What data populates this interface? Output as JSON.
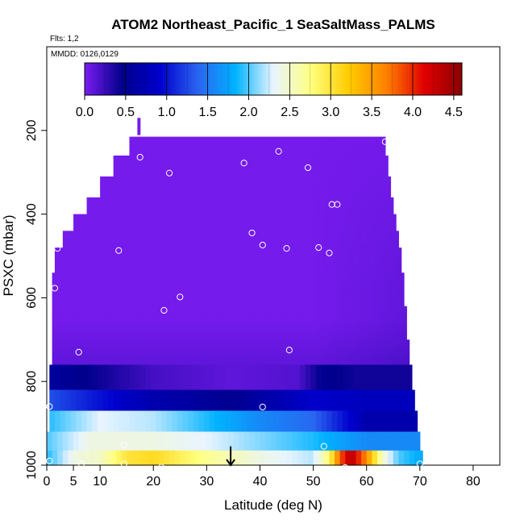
{
  "chart_data": {
    "type": "heatmap",
    "title": "ATOM2 Northeast_Pacific_1 SeaSaltMass_PALMS",
    "subtitle": "Flts: 1,2",
    "annotation": "MMDD: 0126,0129",
    "xlabel": "Latitude (deg N)",
    "ylabel": "PSXC (mbar)",
    "xlim": [
      0,
      85
    ],
    "ylim": [
      1000,
      0
    ],
    "x_ticks": [
      0,
      5,
      10,
      20,
      30,
      40,
      50,
      60,
      70,
      80
    ],
    "x_tick_labels": [
      "0",
      "5",
      "10",
      "20",
      "30",
      "40",
      "50",
      "60",
      "70",
      "80"
    ],
    "y_ticks": [
      200,
      400,
      600,
      800,
      1000
    ],
    "y_tick_labels": [
      "200",
      "400",
      "600",
      "800",
      "1000"
    ],
    "colorbar": {
      "range": [
        0,
        4.6
      ],
      "ticks": [
        0.0,
        0.5,
        1.0,
        1.5,
        2.0,
        2.5,
        3.0,
        3.5,
        4.0,
        4.5
      ],
      "tick_labels": [
        "0.0",
        "0.5",
        "1.0",
        "1.5",
        "2.0",
        "2.5",
        "3.0",
        "3.5",
        "4.0",
        "4.5"
      ],
      "colors": [
        "#7a1cf0",
        "#00008b",
        "#0000cd",
        "#2a64f0",
        "#00b2ff",
        "#e8f4ff",
        "#ffff80",
        "#ffcc00",
        "#ff8000",
        "#e00000",
        "#8b0000"
      ]
    },
    "coverage": [
      {
        "pmin": 170,
        "pmax": 210,
        "lmin": 17.0,
        "lmax": 17.5
      },
      {
        "pmin": 215,
        "pmax": 260,
        "lmin": 15.5,
        "lmax": 63.5
      },
      {
        "pmin": 260,
        "pmax": 310,
        "lmin": 12.5,
        "lmax": 64.0
      },
      {
        "pmin": 310,
        "pmax": 360,
        "lmin": 10.0,
        "lmax": 64.5
      },
      {
        "pmin": 360,
        "pmax": 400,
        "lmin": 7.5,
        "lmax": 65.0
      },
      {
        "pmin": 400,
        "pmax": 440,
        "lmin": 5.0,
        "lmax": 65.5
      },
      {
        "pmin": 440,
        "pmax": 480,
        "lmin": 3.0,
        "lmax": 66.0
      },
      {
        "pmin": 480,
        "pmax": 540,
        "lmin": 1.5,
        "lmax": 66.5
      },
      {
        "pmin": 540,
        "pmax": 620,
        "lmin": 1.0,
        "lmax": 67.0
      },
      {
        "pmin": 620,
        "pmax": 700,
        "lmin": 1.0,
        "lmax": 67.5
      },
      {
        "pmin": 700,
        "pmax": 760,
        "lmin": 1.0,
        "lmax": 68.0
      },
      {
        "pmin": 760,
        "pmax": 820,
        "lmin": 0.5,
        "lmax": 68.5
      },
      {
        "pmin": 820,
        "pmax": 870,
        "lmin": 0.5,
        "lmax": 69.0
      },
      {
        "pmin": 870,
        "pmax": 920,
        "lmin": 0.5,
        "lmax": 69.5
      },
      {
        "pmin": 920,
        "pmax": 965,
        "lmin": 0.0,
        "lmax": 70.0
      },
      {
        "pmin": 965,
        "pmax": 1000,
        "lmin": 0.0,
        "lmax": 70.5
      }
    ],
    "value_bands": [
      {
        "pmin": 760,
        "pmax": 820,
        "stops": [
          [
            0,
            0.6
          ],
          [
            8,
            0.45
          ],
          [
            20,
            0.2
          ],
          [
            35,
            0.1
          ],
          [
            47,
            0.15
          ],
          [
            52,
            0.5
          ],
          [
            58,
            0.4
          ],
          [
            70,
            0.4
          ]
        ]
      },
      {
        "pmin": 820,
        "pmax": 870,
        "stops": [
          [
            0,
            1.3
          ],
          [
            10,
            1.0
          ],
          [
            20,
            0.7
          ],
          [
            35,
            0.5
          ],
          [
            50,
            0.9
          ],
          [
            60,
            0.8
          ],
          [
            70,
            0.8
          ]
        ]
      },
      {
        "pmin": 870,
        "pmax": 920,
        "stops": [
          [
            0,
            1.9
          ],
          [
            10,
            2.3
          ],
          [
            20,
            2.2
          ],
          [
            30,
            1.9
          ],
          [
            40,
            1.6
          ],
          [
            50,
            1.4
          ],
          [
            60,
            0.7
          ],
          [
            70,
            0.7
          ]
        ]
      },
      {
        "pmin": 920,
        "pmax": 965,
        "stops": [
          [
            0,
            2.0
          ],
          [
            8,
            2.4
          ],
          [
            20,
            2.4
          ],
          [
            30,
            2.3
          ],
          [
            40,
            2.1
          ],
          [
            50,
            1.9
          ],
          [
            60,
            1.6
          ],
          [
            70,
            1.6
          ]
        ]
      },
      {
        "pmin": 965,
        "pmax": 1000,
        "stops": [
          [
            0,
            1.9
          ],
          [
            5,
            2.4
          ],
          [
            10,
            2.5
          ],
          [
            15,
            3.0
          ],
          [
            20,
            3.1
          ],
          [
            30,
            2.7
          ],
          [
            40,
            2.4
          ],
          [
            50,
            2.2
          ],
          [
            53,
            2.8
          ],
          [
            55,
            3.8
          ],
          [
            57,
            4.4
          ],
          [
            60,
            3.6
          ],
          [
            63,
            2.5
          ],
          [
            66,
            2.0
          ],
          [
            70,
            1.8
          ]
        ]
      }
    ],
    "observations": [
      {
        "lat": 2.0,
        "p": 482
      },
      {
        "lat": 1.5,
        "p": 577
      },
      {
        "lat": 6.0,
        "p": 730
      },
      {
        "lat": 0.5,
        "p": 860
      },
      {
        "lat": 6.5,
        "p": 997
      },
      {
        "lat": 0.5,
        "p": 990
      },
      {
        "lat": 13.5,
        "p": 487
      },
      {
        "lat": 17.5,
        "p": 264
      },
      {
        "lat": 23.0,
        "p": 302
      },
      {
        "lat": 22.0,
        "p": 630
      },
      {
        "lat": 25.0,
        "p": 598
      },
      {
        "lat": 14.5,
        "p": 952
      },
      {
        "lat": 14.5,
        "p": 997
      },
      {
        "lat": 21.5,
        "p": 1005
      },
      {
        "lat": 37.0,
        "p": 278
      },
      {
        "lat": 38.5,
        "p": 445
      },
      {
        "lat": 40.5,
        "p": 474
      },
      {
        "lat": 43.5,
        "p": 250
      },
      {
        "lat": 45.0,
        "p": 482
      },
      {
        "lat": 45.5,
        "p": 725
      },
      {
        "lat": 40.5,
        "p": 861
      },
      {
        "lat": 46.5,
        "p": 1013
      },
      {
        "lat": 49.0,
        "p": 289
      },
      {
        "lat": 51.0,
        "p": 480
      },
      {
        "lat": 53.0,
        "p": 493
      },
      {
        "lat": 53.5,
        "p": 377
      },
      {
        "lat": 54.5,
        "p": 377
      },
      {
        "lat": 52.0,
        "p": 955
      },
      {
        "lat": 52.0,
        "p": 1011
      },
      {
        "lat": 56.0,
        "p": 1006
      },
      {
        "lat": 63.5,
        "p": 227
      },
      {
        "lat": 70.0,
        "p": 997
      }
    ],
    "marker": {
      "lat": 34.5,
      "p_top": 955,
      "p_bottom": 1000
    }
  }
}
